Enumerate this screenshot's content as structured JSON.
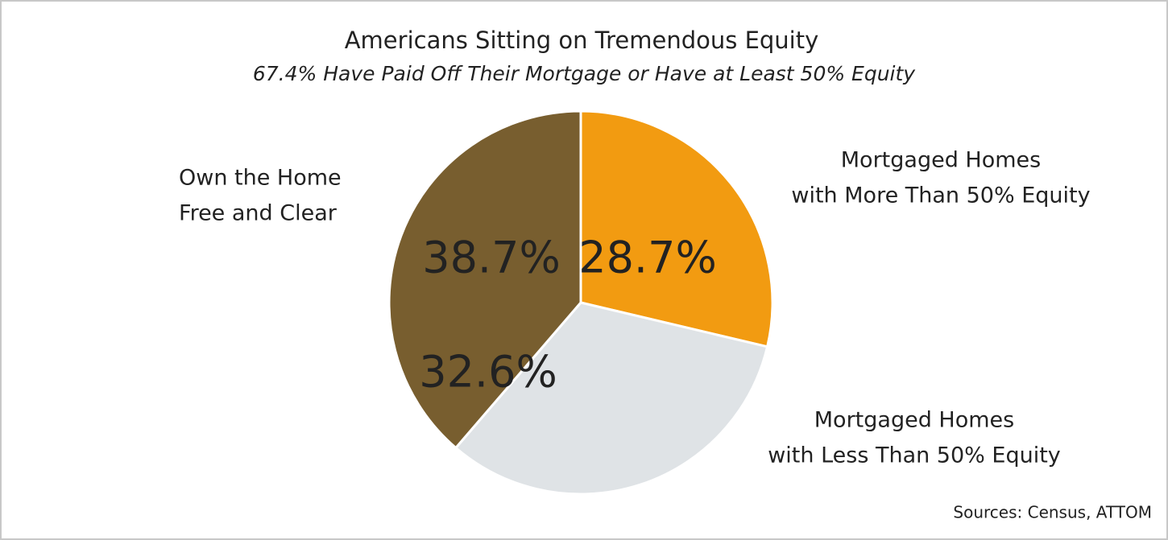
{
  "chart_data": {
    "type": "pie",
    "title": "Americans Sitting on Tremendous Equity",
    "subtitle": "67.4% Have Paid Off Their Mortgage or Have at Least 50% Equity",
    "categories": [
      [
        "Mortgaged Homes",
        "with More Than 50% Equity"
      ],
      [
        "Mortgaged Homes",
        "with Less Than 50% Equity"
      ],
      [
        "Own the Home",
        "Free and Clear"
      ]
    ],
    "values": [
      28.7,
      32.6,
      38.7
    ],
    "value_labels": [
      "28.7%",
      "32.6%",
      "38.7%"
    ],
    "colors": [
      "#f29b11",
      "#dfe3e6",
      "#785e2f"
    ],
    "source": "Sources: Census, ATTOM"
  }
}
